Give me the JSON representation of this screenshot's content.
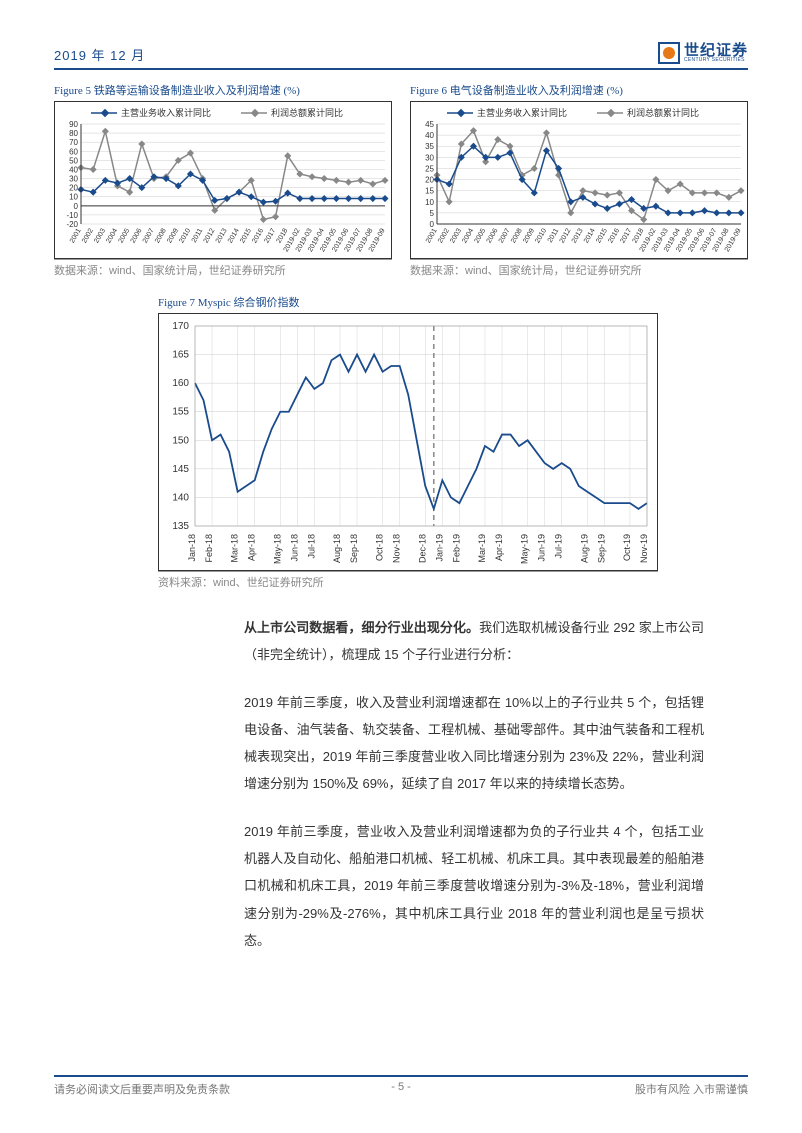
{
  "header": {
    "date": "2019 年 12 月",
    "logo_ch": "世纪证券",
    "logo_en": "CENTURY SECURITIES"
  },
  "fig5": {
    "title": "Figure 5 铁路等运输设备制造业收入及利润增速 (%)",
    "legend": [
      "主营业务收入累计同比",
      "利润总额累计同比"
    ],
    "source": "数据来源：wind、国家统计局，世纪证券研究所",
    "type": "line",
    "colors": {
      "a": "#1a4b8c",
      "b": "#888888",
      "border": "#333333",
      "grid": "#cccccc",
      "bg": "#ffffff"
    },
    "ylim": [
      -20,
      90
    ],
    "ytick_step": 10,
    "x": [
      "2001",
      "2002",
      "2003",
      "2004",
      "2005",
      "2006",
      "2007",
      "2008",
      "2009",
      "2010",
      "2011",
      "2012",
      "2013",
      "2014",
      "2015",
      "2016",
      "2017",
      "2018",
      "2019-02",
      "2019-03",
      "2019-04",
      "2019-05",
      "2019-06",
      "2019-07",
      "2019-08",
      "2019-09"
    ],
    "series_a": [
      18,
      15,
      28,
      25,
      30,
      20,
      32,
      30,
      22,
      35,
      28,
      6,
      8,
      15,
      10,
      4,
      5,
      14,
      8,
      8,
      8,
      8,
      8,
      8,
      8,
      8
    ],
    "series_b": [
      42,
      40,
      82,
      22,
      15,
      68,
      30,
      32,
      50,
      58,
      30,
      -5,
      8,
      15,
      28,
      -15,
      -12,
      55,
      35,
      32,
      30,
      28,
      26,
      28,
      24,
      28
    ],
    "marker": "diamond",
    "line_width": 1.5
  },
  "fig6": {
    "title": "Figure 6 电气设备制造业收入及利润增速 (%)",
    "legend": [
      "主营业务收入累计同比",
      "利润总额累计同比"
    ],
    "source": "数据来源：wind、国家统计局，世纪证券研究所",
    "type": "line",
    "colors": {
      "a": "#1a4b8c",
      "b": "#888888",
      "border": "#333333",
      "grid": "#cccccc",
      "bg": "#ffffff"
    },
    "ylim": [
      0,
      45
    ],
    "ytick_step": 5,
    "x": [
      "2001",
      "2002",
      "2003",
      "2004",
      "2005",
      "2006",
      "2007",
      "2008",
      "2009",
      "2010",
      "2011",
      "2012",
      "2013",
      "2014",
      "2015",
      "2016",
      "2017",
      "2018",
      "2019-02",
      "2019-03",
      "2019-04",
      "2019-05",
      "2019-06",
      "2019-07",
      "2019-08",
      "2019-09"
    ],
    "series_a": [
      20,
      18,
      30,
      35,
      30,
      30,
      32,
      20,
      14,
      33,
      25,
      10,
      12,
      9,
      7,
      9,
      11,
      7,
      8,
      5,
      5,
      5,
      6,
      5,
      5,
      5
    ],
    "series_b": [
      22,
      10,
      36,
      42,
      28,
      38,
      35,
      22,
      25,
      41,
      22,
      5,
      15,
      14,
      13,
      14,
      6,
      2,
      20,
      15,
      18,
      14,
      14,
      14,
      12,
      15
    ],
    "marker": "diamond",
    "line_width": 1.5
  },
  "fig7": {
    "title": "Figure 7 Myspic 综合钢价指数",
    "source": "资料来源：wind、世纪证券研究所",
    "type": "line",
    "colors": {
      "line": "#1a4b8c",
      "border": "#999999",
      "grid": "#cccccc",
      "dash": "#888888",
      "bg": "#ffffff"
    },
    "ylim": [
      135,
      170
    ],
    "ytick_step": 5,
    "x_labels": [
      "Jan-18",
      "Feb-18",
      "Mar-18",
      "Apr-18",
      "May-18",
      "Jun-18",
      "Jul-18",
      "Aug-18",
      "Sep-18",
      "Oct-18",
      "Nov-18",
      "Dec-18",
      "Jan-19",
      "Feb-19",
      "Mar-19",
      "Apr-19",
      "May-19",
      "Jun-19",
      "Jul-19",
      "Aug-19",
      "Sep-19",
      "Oct-19",
      "Nov-19"
    ],
    "values": [
      160,
      157,
      150,
      151,
      148,
      141,
      142,
      143,
      148,
      152,
      155,
      155,
      158,
      161,
      159,
      160,
      164,
      165,
      162,
      165,
      162,
      165,
      162,
      163,
      163,
      158,
      150,
      142,
      138,
      143,
      140,
      139,
      142,
      145,
      149,
      148,
      151,
      151,
      149,
      150,
      148,
      146,
      145,
      146,
      145,
      142,
      141,
      140,
      139,
      139,
      139,
      139,
      138,
      139
    ],
    "dash_x_index": 28,
    "line_width": 1.8
  },
  "body": {
    "p1_bold": "从上市公司数据看，细分行业出现分化。",
    "p1_rest": "我们选取机械设备行业 292 家上市公司（非完全统计），梳理成 15 个子行业进行分析：",
    "p2": "2019 年前三季度，收入及营业利润增速都在 10%以上的子行业共 5 个，包括锂电设备、油气装备、轨交装备、工程机械、基础零部件。其中油气装备和工程机械表现突出，2019 年前三季度营业收入同比增速分别为 23%及 22%，营业利润增速分别为 150%及 69%，延续了自 2017 年以来的持续增长态势。",
    "p3": "2019 年前三季度，营业收入及营业利润增速都为负的子行业共 4 个，包括工业机器人及自动化、船舶港口机械、轻工机械、机床工具。其中表现最差的船舶港口机械和机床工具，2019 年前三季度营收增速分别为-3%及-18%，营业利润增速分别为-29%及-276%，其中机床工具行业 2018 年的营业利润也是呈亏损状态。"
  },
  "footer": {
    "left": "请务必阅读文后重要声明及免责条款",
    "center": "- 5 -",
    "right": "股市有风险 入市需谨慎"
  }
}
